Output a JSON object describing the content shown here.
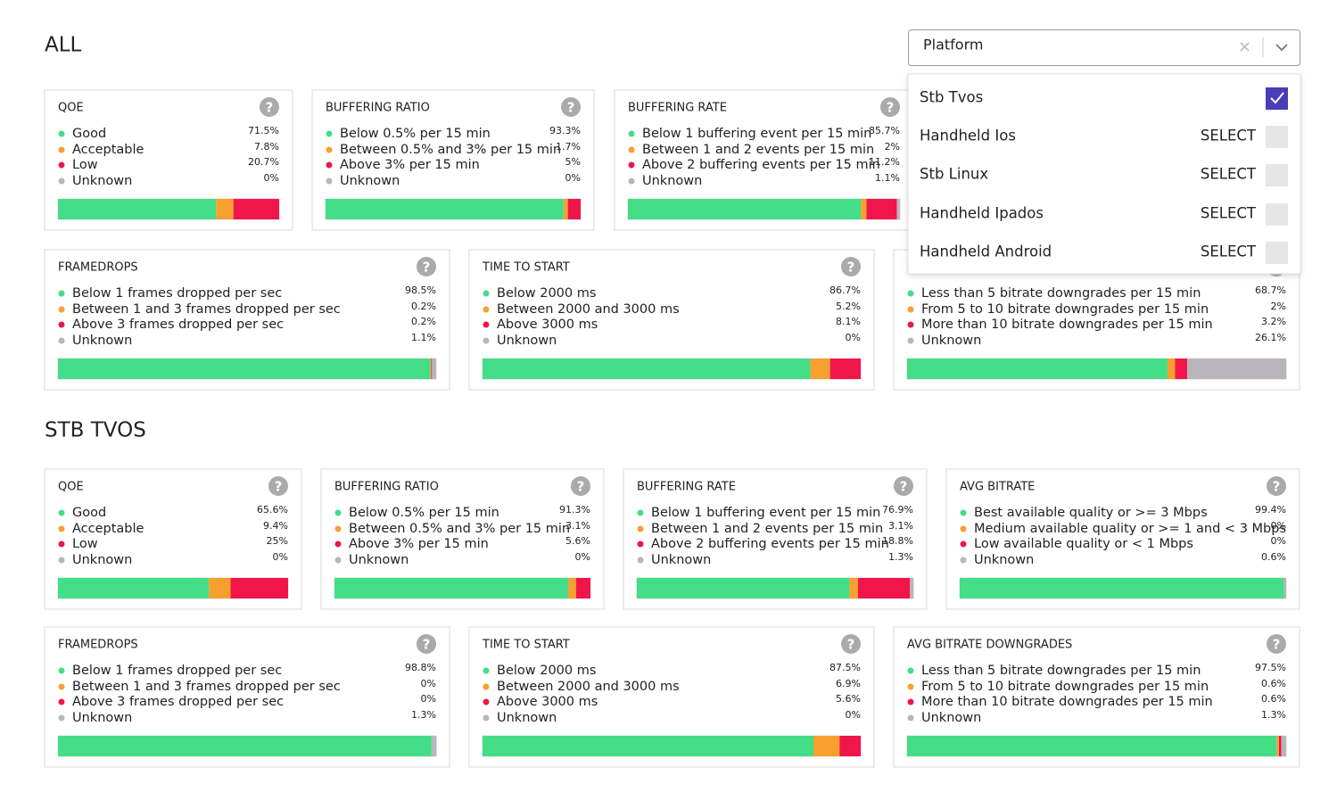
{
  "status_colors": [
    "#44dd88",
    "#f7a030",
    "#f0164a",
    "#b9b5bd"
  ],
  "help_icon": "?",
  "sections": [
    {
      "title": "ALL",
      "cards": [
        {
          "title": "QOE",
          "rows": [
            {
              "label": "Good",
              "value": 71.5,
              "value_label": "71.5%"
            },
            {
              "label": "Acceptable",
              "value": 7.8,
              "value_label": "7.8%"
            },
            {
              "label": "Low",
              "value": 20.7,
              "value_label": "20.7%"
            },
            {
              "label": "Unknown",
              "value": 0,
              "value_label": "0%"
            }
          ]
        },
        {
          "title": "BUFFERING RATIO",
          "rows": [
            {
              "label": "Below 0.5% per 15 min",
              "value": 93.3,
              "value_label": "93.3%"
            },
            {
              "label": "Between 0.5% and 3% per 15 min",
              "value": 1.7,
              "value_label": "1.7%"
            },
            {
              "label": "Above 3% per 15 min",
              "value": 5,
              "value_label": "5%"
            },
            {
              "label": "Unknown",
              "value": 0,
              "value_label": "0%"
            }
          ]
        },
        {
          "title": "BUFFERING RATE",
          "rows": [
            {
              "label": "Below 1 buffering event per 15 min",
              "value": 85.7,
              "value_label": "85.7%"
            },
            {
              "label": "Between 1 and 2 events per 15 min",
              "value": 2,
              "value_label": "2%"
            },
            {
              "label": "Above 2 buffering events per 15 min",
              "value": 11.2,
              "value_label": "11.2%"
            },
            {
              "label": "Unknown",
              "value": 1.1,
              "value_label": "1.1%"
            }
          ]
        },
        {
          "title": "FRAMEDROPS",
          "rows": [
            {
              "label": "Below 1 frames dropped per sec",
              "value": 98.5,
              "value_label": "98.5%"
            },
            {
              "label": "Between 1 and 3 frames dropped per sec",
              "value": 0.2,
              "value_label": "0.2%"
            },
            {
              "label": "Above 3 frames dropped per sec",
              "value": 0.2,
              "value_label": "0.2%"
            },
            {
              "label": "Unknown",
              "value": 1.1,
              "value_label": "1.1%"
            }
          ]
        },
        {
          "title": "TIME TO START",
          "rows": [
            {
              "label": "Below 2000 ms",
              "value": 86.7,
              "value_label": "86.7%"
            },
            {
              "label": "Between 2000 and 3000 ms",
              "value": 5.2,
              "value_label": "5.2%"
            },
            {
              "label": "Above 3000 ms",
              "value": 8.1,
              "value_label": "8.1%"
            },
            {
              "label": "Unknown",
              "value": 0,
              "value_label": "0%"
            }
          ]
        },
        {
          "rows": [
            {
              "label": "Less than 5 bitrate downgrades per 15 min",
              "value": 68.7,
              "value_label": "68.7%"
            },
            {
              "label": "From 5 to 10 bitrate downgrades per 15 min",
              "value": 2,
              "value_label": "2%"
            },
            {
              "label": "More than 10 bitrate downgrades per 15 min",
              "value": 3.2,
              "value_label": "3.2%"
            },
            {
              "label": "Unknown",
              "value": 26.1,
              "value_label": "26.1%"
            }
          ]
        }
      ]
    },
    {
      "title": "STB TVOS",
      "cards": [
        {
          "title": "QOE",
          "rows": [
            {
              "label": "Good",
              "value": 65.6,
              "value_label": "65.6%"
            },
            {
              "label": "Acceptable",
              "value": 9.4,
              "value_label": "9.4%"
            },
            {
              "label": "Low",
              "value": 25,
              "value_label": "25%"
            },
            {
              "label": "Unknown",
              "value": 0,
              "value_label": "0%"
            }
          ]
        },
        {
          "title": "BUFFERING RATIO",
          "rows": [
            {
              "label": "Below 0.5% per 15 min",
              "value": 91.3,
              "value_label": "91.3%"
            },
            {
              "label": "Between 0.5% and 3% per 15 min",
              "value": 3.1,
              "value_label": "3.1%"
            },
            {
              "label": "Above 3% per 15 min",
              "value": 5.6,
              "value_label": "5.6%"
            },
            {
              "label": "Unknown",
              "value": 0,
              "value_label": "0%"
            }
          ]
        },
        {
          "title": "BUFFERING RATE",
          "rows": [
            {
              "label": "Below 1 buffering event per 15 min",
              "value": 76.9,
              "value_label": "76.9%"
            },
            {
              "label": "Between 1 and 2 events per 15 min",
              "value": 3.1,
              "value_label": "3.1%"
            },
            {
              "label": "Above 2 buffering events per 15 min",
              "value": 18.8,
              "value_label": "18.8%"
            },
            {
              "label": "Unknown",
              "value": 1.3,
              "value_label": "1.3%"
            }
          ]
        },
        {
          "title": "AVG BITRATE",
          "rows": [
            {
              "label": "Best available quality or >= 3 Mbps",
              "value": 99.4,
              "value_label": "99.4%"
            },
            {
              "label": "Medium available quality or >= 1 and < 3 Mbps",
              "value": 0,
              "value_label": "0%"
            },
            {
              "label": "Low available quality or < 1 Mbps",
              "value": 0,
              "value_label": "0%"
            },
            {
              "label": "Unknown",
              "value": 0.6,
              "value_label": "0.6%"
            }
          ]
        },
        {
          "title": "FRAMEDROPS",
          "rows": [
            {
              "label": "Below 1 frames dropped per sec",
              "value": 98.8,
              "value_label": "98.8%"
            },
            {
              "label": "Between 1 and 3 frames dropped per sec",
              "value": 0,
              "value_label": "0%"
            },
            {
              "label": "Above 3 frames dropped per sec",
              "value": 0,
              "value_label": "0%"
            },
            {
              "label": "Unknown",
              "value": 1.3,
              "value_label": "1.3%"
            }
          ]
        },
        {
          "title": "TIME TO START",
          "rows": [
            {
              "label": "Below 2000 ms",
              "value": 87.5,
              "value_label": "87.5%"
            },
            {
              "label": "Between 2000 and 3000 ms",
              "value": 6.9,
              "value_label": "6.9%"
            },
            {
              "label": "Above 3000 ms",
              "value": 5.6,
              "value_label": "5.6%"
            },
            {
              "label": "Unknown",
              "value": 0,
              "value_label": "0%"
            }
          ]
        },
        {
          "title": "AVG BITRATE DOWNGRADES",
          "rows": [
            {
              "label": "Less than 5 bitrate downgrades per 15 min",
              "value": 97.5,
              "value_label": "97.5%"
            },
            {
              "label": "From 5 to 10 bitrate downgrades per 15 min",
              "value": 0.6,
              "value_label": "0.6%"
            },
            {
              "label": "More than 10 bitrate downgrades per 15 min",
              "value": 0.6,
              "value_label": "0.6%"
            },
            {
              "label": "Unknown",
              "value": 1.3,
              "value_label": "1.3%"
            }
          ]
        }
      ]
    }
  ],
  "dropdown": {
    "placeholder": "Platform",
    "options": [
      {
        "label": "Stb Tvos",
        "selected": true
      },
      {
        "label": "Handheld Ios",
        "action": "SELECT"
      },
      {
        "label": "Stb Linux",
        "action": "SELECT"
      },
      {
        "label": "Handheld Ipados",
        "action": "SELECT"
      },
      {
        "label": "Handheld Android",
        "action": "SELECT"
      }
    ]
  }
}
